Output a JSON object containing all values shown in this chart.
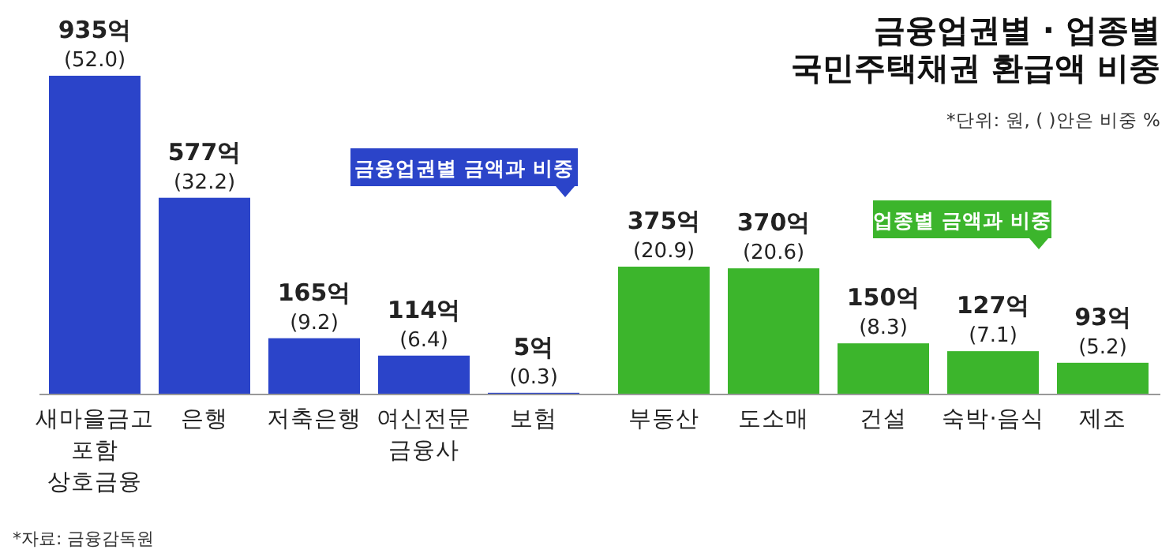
{
  "chart_data": {
    "type": "bar",
    "title": "금융업권별 · 업종별\n국민주택채권 환급액 비중",
    "annotations": [
      "*단위: 원, ( )안은 비중 %",
      "*자료: 금융감독원"
    ],
    "categories": [
      "새마을금고\n포함\n상호금융",
      "은행",
      "저축은행",
      "여신전문\n금융사",
      "보험",
      "부동산",
      "도소매",
      "건설",
      "숙박·음식",
      "제조"
    ],
    "series": [
      {
        "name": "금융업권별 금액과 비중",
        "color": "#2b44c9",
        "values": [
          935,
          577,
          165,
          114,
          5,
          null,
          null,
          null,
          null,
          null
        ],
        "value_labels": [
          "935억\n(52.0)",
          "577억\n(32.2)",
          "165억\n(9.2)",
          "114억\n(6.4)",
          "5억\n(0.3)",
          null,
          null,
          null,
          null,
          null
        ]
      },
      {
        "name": "업종별 금액과 비중",
        "color": "#3cb52c",
        "values": [
          null,
          null,
          null,
          null,
          null,
          375,
          370,
          150,
          127,
          93
        ],
        "value_labels": [
          null,
          null,
          null,
          null,
          null,
          "375억\n(20.9)",
          "370억\n(20.6)",
          "150억\n(8.3)",
          "127억\n(7.1)",
          "93억\n(5.2)"
        ]
      }
    ],
    "legend": "top right"
  }
}
